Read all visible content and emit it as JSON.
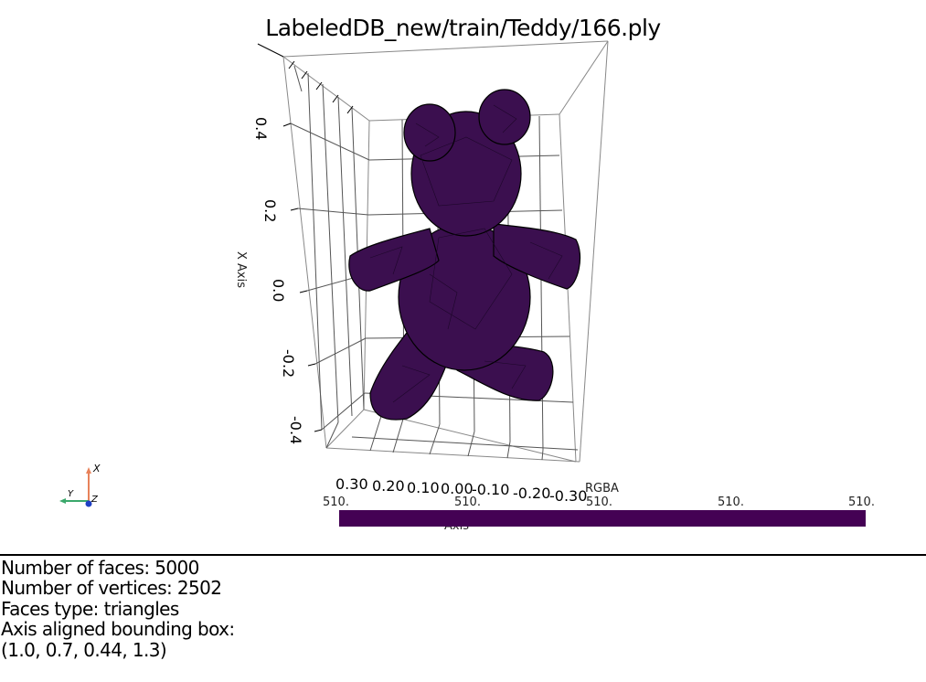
{
  "window": {
    "title": "LabeledDB_new/train/Teddy/166.ply"
  },
  "plot": {
    "x_axis_title": "X Axis",
    "x_axis_ticks": [
      "0.4",
      "0.2",
      "0.0",
      "-0.2",
      "-0.4"
    ],
    "y_axis_ticks": [
      "0.30",
      "0.20",
      "0.10",
      "0.00",
      "-0.10",
      "-0.20",
      "-0.30"
    ],
    "y_axis_title_fragment": "Axis",
    "mesh_color": "#3b0f4f",
    "mesh_edge_color": "#000000"
  },
  "orientation_widget": {
    "x_label": "X",
    "y_label": "Y",
    "z_label": "Z",
    "x_color": "#e8825a",
    "y_color": "#3aa86b",
    "z_color": "#1f3fc4"
  },
  "colorbar": {
    "title": "RGBA",
    "tick_labels": [
      "510.",
      "510.",
      "510.",
      "510.",
      "510."
    ],
    "color": "#440154"
  },
  "info": {
    "faces": "Number of faces: 5000",
    "vertices": "Number of vertices: 2502",
    "faces_type": "Faces type: triangles",
    "bbox_label": "Axis aligned bounding box:",
    "bbox_value": "(1.0, 0.7, 0.44, 1.3)"
  }
}
